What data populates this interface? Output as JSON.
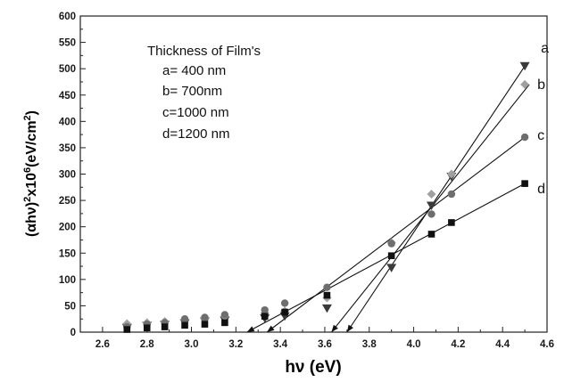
{
  "chart_data": {
    "type": "scatter",
    "xlabel": "hν (eV)",
    "ylabel": {
      "base": "(αhν)",
      "sup1": "2",
      "mid": "x10",
      "sup2": "6",
      "unit": "(eV/cm",
      "sup3": "2",
      "close": ")"
    },
    "xlim": [
      2.5,
      4.6
    ],
    "ylim": [
      0,
      600
    ],
    "xticks": [
      "2.6",
      "2.8",
      "3.0",
      "3.2",
      "3.4",
      "3.6",
      "3.8",
      "4.0",
      "4.2",
      "4.4",
      "4.6"
    ],
    "xtick_values": [
      2.6,
      2.8,
      3.0,
      3.2,
      3.4,
      3.6,
      3.8,
      4.0,
      4.2,
      4.4,
      4.6
    ],
    "yticks": [
      "0",
      "50",
      "100",
      "150",
      "200",
      "250",
      "300",
      "350",
      "400",
      "450",
      "500",
      "550",
      "600"
    ],
    "ytick_values": [
      0,
      50,
      100,
      150,
      200,
      250,
      300,
      350,
      400,
      450,
      500,
      550,
      600
    ],
    "annotation": [
      "Thickness of Film's",
      "a= 400 nm",
      "b= 700nm",
      "c=1000 nm",
      "d=1200 nm"
    ],
    "series": [
      {
        "name": "a",
        "marker": "triangle-down",
        "color": "#3a3a3a",
        "x": [
          2.71,
          2.8,
          2.88,
          2.97,
          3.06,
          3.15,
          3.33,
          3.42,
          3.61,
          3.9,
          4.08,
          4.17,
          4.5
        ],
        "y": [
          8,
          12,
          14,
          17,
          20,
          22,
          26,
          30,
          45,
          122,
          240,
          295,
          505
        ],
        "fit": {
          "x1": 3.7,
          "y1": 0,
          "x2": 4.5,
          "y2": 505
        }
      },
      {
        "name": "b",
        "marker": "diamond",
        "color": "#a0a0a0",
        "x": [
          2.71,
          2.8,
          2.88,
          2.97,
          3.06,
          3.15,
          3.33,
          3.42,
          3.61,
          3.9,
          4.08,
          4.17,
          4.5
        ],
        "y": [
          16,
          18,
          20,
          24,
          26,
          30,
          36,
          40,
          65,
          170,
          262,
          300,
          470
        ],
        "fit": {
          "x1": 3.63,
          "y1": 0,
          "x2": 4.52,
          "y2": 470
        }
      },
      {
        "name": "c",
        "marker": "circle",
        "color": "#6e6e6e",
        "x": [
          2.71,
          2.8,
          2.88,
          2.97,
          3.06,
          3.15,
          3.33,
          3.42,
          3.61,
          3.9,
          4.08,
          4.17,
          4.5
        ],
        "y": [
          10,
          15,
          18,
          25,
          28,
          33,
          42,
          55,
          85,
          168,
          224,
          262,
          370
        ],
        "fit": {
          "x1": 3.34,
          "y1": 0,
          "x2": 4.5,
          "y2": 370
        }
      },
      {
        "name": "d",
        "marker": "square",
        "color": "#111111",
        "x": [
          2.71,
          2.8,
          2.88,
          2.97,
          3.06,
          3.15,
          3.33,
          3.42,
          3.61,
          3.9,
          4.08,
          4.17,
          4.5
        ],
        "y": [
          5,
          8,
          10,
          13,
          15,
          18,
          30,
          38,
          70,
          145,
          186,
          208,
          282
        ],
        "fit": {
          "x1": 3.25,
          "y1": 0,
          "x2": 4.5,
          "y2": 282
        }
      }
    ],
    "grid": false,
    "legend": "none"
  }
}
